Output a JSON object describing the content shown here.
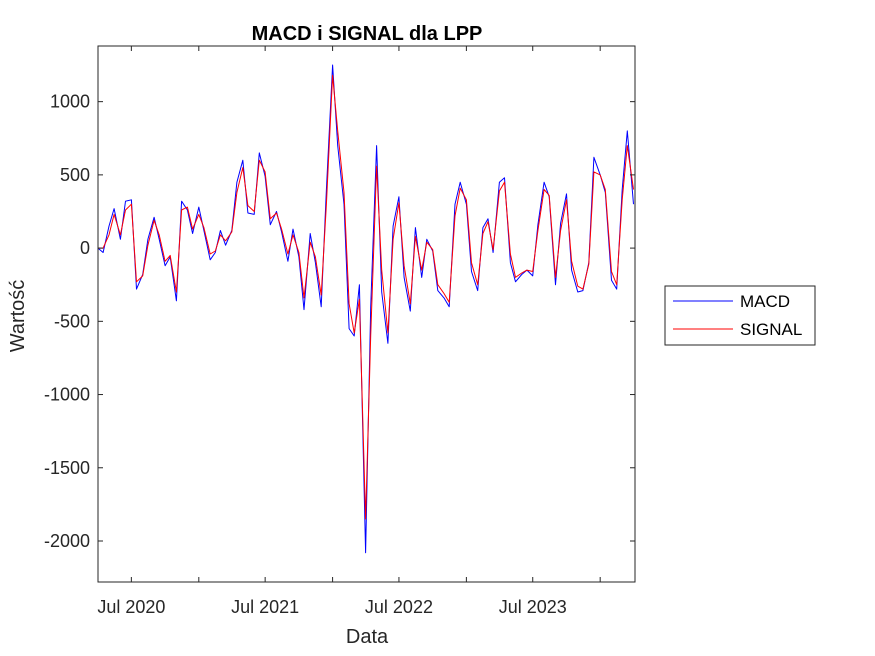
{
  "chart_data": {
    "type": "line",
    "title": "MACD i SIGNAL dla LPP",
    "xlabel": "Data",
    "ylabel": "Wartość",
    "x_ticks": [
      "Jul 2020",
      "Jul 2021",
      "Jul 2022",
      "Jul 2023"
    ],
    "x_tick_dates": [
      "2020-07-01",
      "2021-07-01",
      "2022-07-01",
      "2023-07-01"
    ],
    "x_range": [
      "2020-04-01",
      "2024-04-05"
    ],
    "y_ticks": [
      1000,
      500,
      0,
      -500,
      -1000,
      -1500,
      -2000
    ],
    "y_tick_labels": [
      "1000",
      "500",
      "0",
      "-500",
      "-1000",
      "-1500",
      "-2000"
    ],
    "ylim": [
      -2280,
      1380
    ],
    "grid": false,
    "legend": {
      "position": "right-outside",
      "entries": [
        "MACD",
        "SIGNAL"
      ]
    },
    "x": [
      "2020-04-01",
      "2020-04-15",
      "2020-05-01",
      "2020-05-15",
      "2020-06-01",
      "2020-06-15",
      "2020-07-01",
      "2020-07-15",
      "2020-08-01",
      "2020-08-15",
      "2020-09-01",
      "2020-09-15",
      "2020-10-01",
      "2020-10-15",
      "2020-11-01",
      "2020-11-15",
      "2020-12-01",
      "2020-12-15",
      "2021-01-01",
      "2021-01-15",
      "2021-02-01",
      "2021-02-15",
      "2021-03-01",
      "2021-03-15",
      "2021-04-01",
      "2021-04-15",
      "2021-05-01",
      "2021-05-15",
      "2021-06-01",
      "2021-06-15",
      "2021-07-01",
      "2021-07-15",
      "2021-08-01",
      "2021-08-15",
      "2021-09-01",
      "2021-09-15",
      "2021-10-01",
      "2021-10-15",
      "2021-11-01",
      "2021-11-15",
      "2021-12-01",
      "2021-12-15",
      "2022-01-01",
      "2022-01-15",
      "2022-02-01",
      "2022-02-15",
      "2022-03-01",
      "2022-03-15",
      "2022-04-01",
      "2022-04-15",
      "2022-05-01",
      "2022-05-15",
      "2022-06-01",
      "2022-06-15",
      "2022-07-01",
      "2022-07-15",
      "2022-08-01",
      "2022-08-15",
      "2022-09-01",
      "2022-09-15",
      "2022-10-01",
      "2022-10-15",
      "2022-11-01",
      "2022-11-15",
      "2022-12-01",
      "2022-12-15",
      "2023-01-01",
      "2023-01-15",
      "2023-02-01",
      "2023-02-15",
      "2023-03-01",
      "2023-03-15",
      "2023-04-01",
      "2023-04-15",
      "2023-05-01",
      "2023-05-15",
      "2023-06-01",
      "2023-06-15",
      "2023-07-01",
      "2023-07-15",
      "2023-08-01",
      "2023-08-15",
      "2023-09-01",
      "2023-09-15",
      "2023-10-01",
      "2023-10-15",
      "2023-11-01",
      "2023-11-15",
      "2023-12-01",
      "2023-12-15",
      "2024-01-01",
      "2024-01-15",
      "2024-02-01",
      "2024-02-15",
      "2024-03-01",
      "2024-03-15",
      "2024-04-01"
    ],
    "series": [
      {
        "name": "MACD",
        "color": "#0000ff",
        "values": [
          0,
          -30,
          150,
          270,
          60,
          320,
          330,
          -280,
          -180,
          60,
          210,
          60,
          -120,
          -60,
          -360,
          320,
          260,
          100,
          280,
          120,
          -80,
          -30,
          120,
          20,
          120,
          450,
          600,
          240,
          230,
          650,
          490,
          160,
          250,
          110,
          -90,
          130,
          -60,
          -420,
          100,
          -100,
          -400,
          400,
          1250,
          700,
          300,
          -550,
          -600,
          -250,
          -2080,
          -400,
          700,
          -300,
          -650,
          150,
          350,
          -200,
          -430,
          140,
          -200,
          60,
          -20,
          -290,
          -340,
          -400,
          300,
          450,
          300,
          -160,
          -290,
          140,
          200,
          -30,
          450,
          480,
          -100,
          -230,
          -180,
          -150,
          -190,
          160,
          450,
          350,
          -250,
          170,
          370,
          -150,
          -300,
          -290,
          -100,
          620,
          500,
          380,
          -220,
          -280,
          400,
          800,
          300
        ]
      },
      {
        "name": "SIGNAL",
        "color": "#ff0000",
        "values": [
          0,
          0,
          90,
          230,
          90,
          260,
          300,
          -230,
          -190,
          20,
          190,
          90,
          -90,
          -50,
          -300,
          260,
          280,
          130,
          230,
          140,
          -40,
          -20,
          90,
          50,
          110,
          380,
          550,
          290,
          250,
          600,
          520,
          200,
          240,
          130,
          -40,
          90,
          -30,
          -340,
          40,
          -60,
          -320,
          300,
          1180,
          800,
          380,
          -380,
          -580,
          -350,
          -1850,
          -600,
          560,
          -150,
          -580,
          60,
          310,
          -120,
          -380,
          80,
          -150,
          40,
          -10,
          -250,
          -310,
          -370,
          220,
          410,
          330,
          -100,
          -250,
          100,
          180,
          -10,
          390,
          450,
          -40,
          -200,
          -170,
          -150,
          -160,
          120,
          400,
          360,
          -200,
          120,
          330,
          -90,
          -260,
          -280,
          -110,
          520,
          500,
          400,
          -160,
          -250,
          330,
          700,
          400
        ]
      }
    ]
  }
}
